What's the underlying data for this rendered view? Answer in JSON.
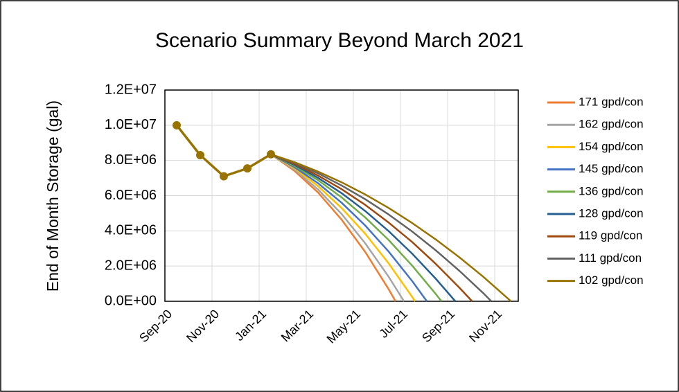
{
  "chart_data": {
    "type": "line",
    "title": "Scenario Summary Beyond March 2021",
    "ylabel": "End of Month Storage (gal)",
    "xlim": [
      0,
      15
    ],
    "xticks": [
      {
        "value": 0,
        "label": "Sep-20"
      },
      {
        "value": 2,
        "label": "Nov-20"
      },
      {
        "value": 4,
        "label": "Jan-21"
      },
      {
        "value": 6,
        "label": "Mar-21"
      },
      {
        "value": 8,
        "label": "May-21"
      },
      {
        "value": 10,
        "label": "Jul-21"
      },
      {
        "value": 12,
        "label": "Sep-21"
      },
      {
        "value": 14,
        "label": "Nov-21"
      }
    ],
    "ylim": [
      0,
      12000000
    ],
    "yticks": [
      {
        "value": 0,
        "label": "0.0E+00"
      },
      {
        "value": 2000000,
        "label": "2.0E+06"
      },
      {
        "value": 4000000,
        "label": "4.0E+06"
      },
      {
        "value": 6000000,
        "label": "6.0E+06"
      },
      {
        "value": 8000000,
        "label": "8.0E+06"
      },
      {
        "value": 10000000,
        "label": "1.0E+07"
      },
      {
        "value": 12000000,
        "label": "1.2E+07"
      }
    ],
    "grid": true,
    "legend": "right",
    "series": [
      {
        "name": "171 gpd/con",
        "color": "#ed7d31",
        "x": [
          4.5,
          5.5,
          6.5,
          7.5,
          8.5,
          9.5,
          9.79
        ],
        "values": [
          8350000,
          7410000,
          6180000,
          4640000,
          2810000,
          680000,
          0
        ]
      },
      {
        "name": "162 gpd/con",
        "color": "#a5a5a5",
        "x": [
          4.5,
          5.5,
          6.5,
          7.5,
          8.5,
          9.5,
          10.15
        ],
        "values": [
          8350000,
          7480000,
          6350000,
          4960000,
          3300000,
          1390000,
          0
        ]
      },
      {
        "name": "154 gpd/con",
        "color": "#ffc000",
        "x": [
          4.5,
          5.5,
          6.5,
          7.5,
          8.5,
          9.5,
          10.5,
          10.62
        ],
        "values": [
          8350000,
          7560000,
          6540000,
          5300000,
          3840000,
          2150000,
          240000,
          0
        ]
      },
      {
        "name": "145 gpd/con",
        "color": "#4472c4",
        "x": [
          4.5,
          5.5,
          6.5,
          7.5,
          8.5,
          9.5,
          10.5,
          11.12
        ],
        "values": [
          8350000,
          7620000,
          6710000,
          5600000,
          4310000,
          2820000,
          1140000,
          0
        ]
      },
      {
        "name": "136 gpd/con",
        "color": "#70ad47",
        "x": [
          4.5,
          5.5,
          6.5,
          7.5,
          8.5,
          9.5,
          10.5,
          11.5,
          11.74
        ],
        "values": [
          8350000,
          7690000,
          6880000,
          5900000,
          4770000,
          3480000,
          2020000,
          410000,
          0
        ]
      },
      {
        "name": "128 gpd/con",
        "color": "#255e91",
        "x": [
          4.5,
          5.5,
          6.5,
          7.5,
          8.5,
          9.5,
          10.5,
          11.5,
          12.33
        ],
        "values": [
          8350000,
          7750000,
          7010000,
          6140000,
          5130000,
          3980000,
          2700000,
          1280000,
          0
        ]
      },
      {
        "name": "119 gpd/con",
        "color": "#9e480e",
        "x": [
          4.5,
          5.5,
          6.5,
          7.5,
          8.5,
          9.5,
          10.5,
          11.5,
          12.5,
          13.04
        ],
        "values": [
          8350000,
          7800000,
          7140000,
          6370000,
          5480000,
          4470000,
          3360000,
          2120000,
          770000,
          0
        ]
      },
      {
        "name": "111 gpd/con",
        "color": "#636363",
        "x": [
          4.5,
          5.5,
          6.5,
          7.5,
          8.5,
          9.5,
          10.5,
          11.5,
          12.5,
          13.5,
          13.86
        ],
        "values": [
          8350000,
          7860000,
          7270000,
          6580000,
          5800000,
          4930000,
          3960000,
          2890000,
          1730000,
          480000,
          0
        ]
      },
      {
        "name": "102 gpd/con",
        "color": "#997300",
        "x": [
          4.5,
          5.5,
          6.5,
          7.5,
          8.5,
          9.5,
          10.5,
          11.5,
          12.5,
          13.5,
          14.5,
          14.69
        ],
        "values": [
          8350000,
          7900000,
          7370000,
          6760000,
          6070000,
          5300000,
          4440000,
          3510000,
          2500000,
          1410000,
          230000,
          0
        ]
      },
      {
        "color": "#997300",
        "markers": true,
        "x": [
          0.5,
          1.5,
          2.5,
          3.5,
          4.5
        ],
        "values": [
          10000000,
          8300000,
          7100000,
          7550000,
          8350000
        ]
      }
    ]
  }
}
